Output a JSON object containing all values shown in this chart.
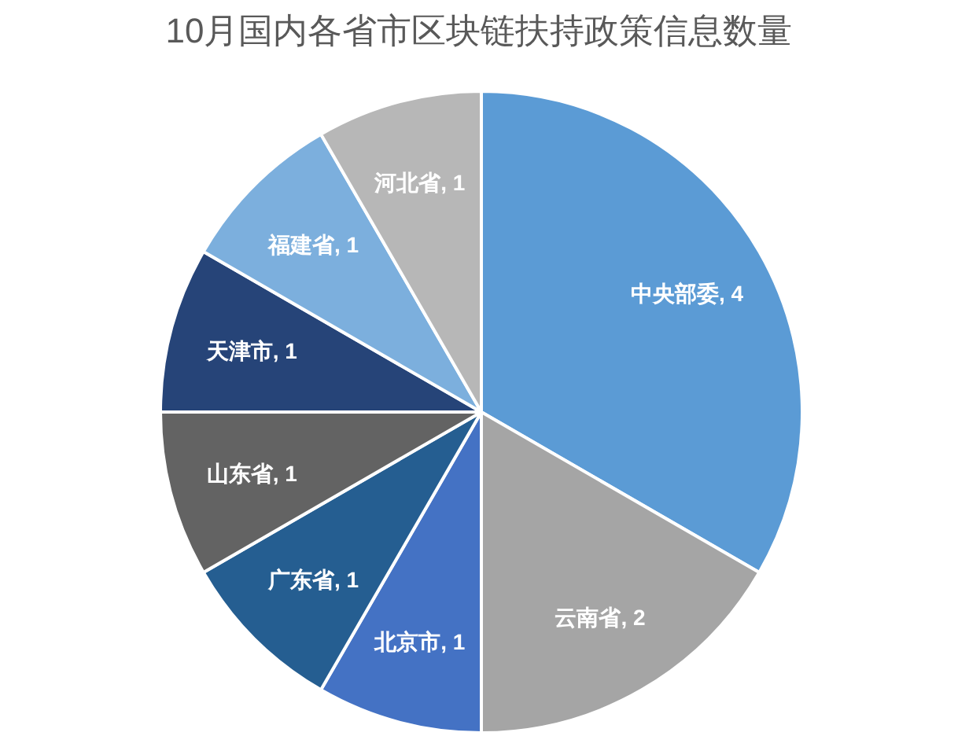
{
  "chart_data": {
    "type": "pie",
    "title": "10月国内各省市区块链扶持政策信息数量",
    "categories": [
      "中央部委",
      "云南省",
      "北京市",
      "广东省",
      "山东省",
      "天津市",
      "福建省",
      "河北省"
    ],
    "values": [
      4,
      2,
      1,
      1,
      1,
      1,
      1,
      1
    ],
    "value_labels": [
      ", 4",
      ", 2",
      ", 1",
      ", 1",
      ", 1",
      ", 1",
      ", 1",
      ", 1"
    ],
    "colors": [
      "#5b9bd5",
      "#a5a5a5",
      "#4472c4",
      "#255e91",
      "#636363",
      "#264478",
      "#7cafdd",
      "#b7b7b7"
    ]
  }
}
